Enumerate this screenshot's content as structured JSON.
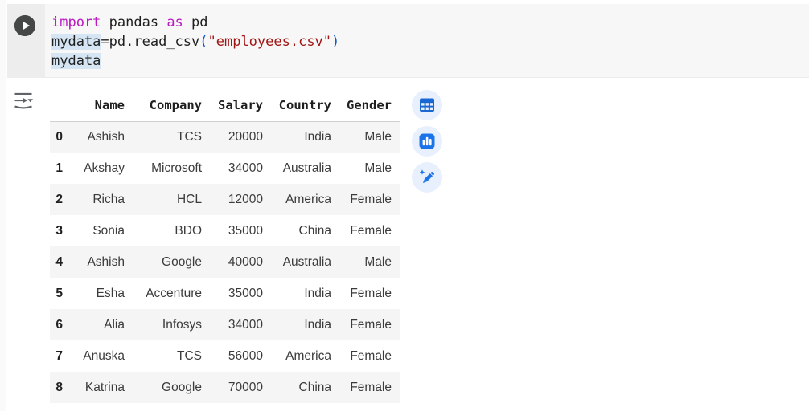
{
  "cell": {
    "run_button": {
      "icon": "play-icon",
      "tooltip": "Run cell"
    },
    "code_lines": [
      [
        {
          "t": "import",
          "c": "kw"
        },
        {
          "t": " pandas ",
          "c": "pl"
        },
        {
          "t": "as",
          "c": "kw"
        },
        {
          "t": " pd",
          "c": "pl"
        }
      ],
      [
        {
          "t": "mydata",
          "c": "pl",
          "h": true
        },
        {
          "t": "=pd.read_csv",
          "c": "pl"
        },
        {
          "t": "(",
          "c": "br"
        },
        {
          "t": "\"employees.csv\"",
          "c": "str"
        },
        {
          "t": ")",
          "c": "br"
        }
      ],
      [
        {
          "t": "mydata",
          "c": "pl",
          "h": true
        }
      ]
    ]
  },
  "output": {
    "gutter_icon": "output-options-icon",
    "table": {
      "index_header": "",
      "columns": [
        "Name",
        "Company",
        "Salary",
        "Country",
        "Gender"
      ],
      "rows": [
        {
          "index": "0",
          "cells": [
            "Ashish",
            "TCS",
            "20000",
            "India",
            "Male"
          ]
        },
        {
          "index": "1",
          "cells": [
            "Akshay",
            "Microsoft",
            "34000",
            "Australia",
            "Male"
          ]
        },
        {
          "index": "2",
          "cells": [
            "Richa",
            "HCL",
            "12000",
            "America",
            "Female"
          ]
        },
        {
          "index": "3",
          "cells": [
            "Sonia",
            "BDO",
            "35000",
            "China",
            "Female"
          ]
        },
        {
          "index": "4",
          "cells": [
            "Ashish",
            "Google",
            "40000",
            "Australia",
            "Male"
          ]
        },
        {
          "index": "5",
          "cells": [
            "Esha",
            "Accenture",
            "35000",
            "India",
            "Female"
          ]
        },
        {
          "index": "6",
          "cells": [
            "Alia",
            "Infosys",
            "34000",
            "India",
            "Female"
          ]
        },
        {
          "index": "7",
          "cells": [
            "Anuska",
            "TCS",
            "56000",
            "America",
            "Female"
          ]
        },
        {
          "index": "8",
          "cells": [
            "Katrina",
            "Google",
            "70000",
            "China",
            "Female"
          ]
        }
      ]
    },
    "actions": [
      {
        "icon": "interactive-table-icon"
      },
      {
        "icon": "suggest-charts-icon"
      },
      {
        "icon": "generate-code-magic-pencil-icon"
      }
    ]
  },
  "colors": {
    "cell_bg": "#f7f7f7",
    "gutter_bg": "#ededed",
    "run_button_bg": "#454746",
    "keyword": "#bb1bc1",
    "string": "#a31515",
    "bracket": "#0b57d0",
    "occurrence_highlight": "#d5e5f3",
    "row_alt_bg": "#f5f5f5",
    "action_circle_bg": "#e8f0fe",
    "action_icon_blue": "#1a73e8",
    "gutter_icon_gray": "#5f6368"
  }
}
